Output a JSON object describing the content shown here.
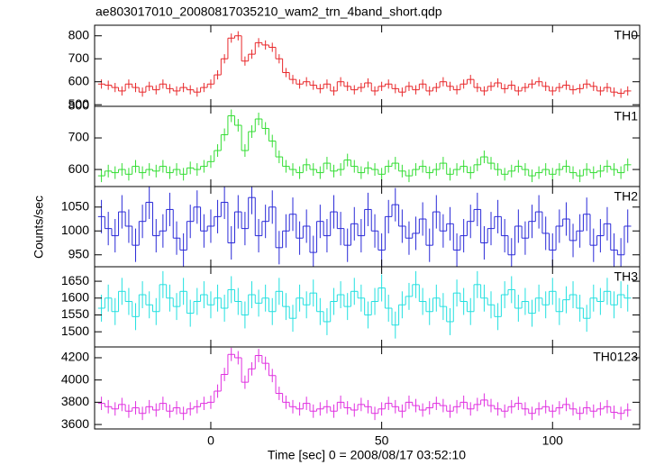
{
  "chart_data": {
    "type": "step",
    "title": "ae803017010_20080817035210_wam2_trn_4band_short.qdp",
    "xlabel": "Time [sec] 0 = 2008/08/17 03:52:10",
    "ylabel": "Counts/sec",
    "xlim": [
      -34,
      125.5
    ],
    "xticks": [
      0,
      50,
      100
    ],
    "x": [
      -32,
      -30,
      -28,
      -26,
      -24,
      -22,
      -20,
      -18,
      -16,
      -14,
      -12,
      -10,
      -8,
      -6,
      -4,
      -2,
      0,
      2,
      4,
      6,
      8,
      10,
      12,
      14,
      16,
      18,
      20,
      22,
      24,
      26,
      28,
      30,
      32,
      34,
      36,
      38,
      40,
      42,
      44,
      46,
      48,
      50,
      52,
      54,
      56,
      58,
      60,
      62,
      64,
      66,
      68,
      70,
      72,
      74,
      76,
      78,
      80,
      82,
      84,
      86,
      88,
      90,
      92,
      94,
      96,
      98,
      100,
      102,
      104,
      106,
      108,
      110,
      112,
      114,
      116,
      118,
      120,
      122
    ],
    "series": [
      {
        "name": "TH0",
        "color": "#e8272a",
        "ylim": [
          493,
          846
        ],
        "yticks": [
          500,
          600,
          700,
          800
        ],
        "error": 20,
        "values": [
          590,
          585,
          575,
          560,
          590,
          575,
          555,
          580,
          565,
          590,
          570,
          560,
          575,
          565,
          555,
          575,
          590,
          630,
          700,
          790,
          800,
          690,
          720,
          770,
          760,
          750,
          700,
          640,
          610,
          590,
          600,
          585,
          570,
          590,
          560,
          600,
          580,
          565,
          575,
          595,
          560,
          580,
          590,
          570,
          555,
          580,
          565,
          590,
          560,
          575,
          600,
          580,
          565,
          590,
          610,
          575,
          560,
          580,
          595,
          570,
          585,
          560,
          575,
          590,
          600,
          580,
          560,
          575,
          585,
          565,
          570,
          590,
          580,
          560,
          575,
          555,
          550,
          560
        ]
      },
      {
        "name": "TH1",
        "color": "#33dd33",
        "ylim": [
          546,
          800
        ],
        "yticks": [
          600,
          700,
          800
        ],
        "error": 20,
        "values": [
          580,
          595,
          590,
          600,
          585,
          610,
          590,
          600,
          595,
          610,
          590,
          600,
          585,
          605,
          600,
          610,
          625,
          660,
          710,
          770,
          740,
          660,
          720,
          760,
          730,
          690,
          640,
          610,
          600,
          590,
          615,
          600,
          590,
          620,
          595,
          600,
          630,
          610,
          590,
          605,
          600,
          585,
          610,
          620,
          595,
          580,
          600,
          610,
          590,
          600,
          620,
          585,
          600,
          610,
          590,
          615,
          640,
          620,
          600,
          585,
          595,
          610,
          600,
          580,
          590,
          600,
          585,
          600,
          610,
          590,
          580,
          600,
          590,
          595,
          610,
          600,
          590,
          615
        ]
      },
      {
        "name": "TH2",
        "color": "#2a2ad8",
        "ylim": [
          925,
          1093
        ],
        "yticks": [
          950,
          1000,
          1050
        ],
        "error": 35,
        "values": [
          1030,
          1005,
          990,
          1040,
          1010,
          970,
          1020,
          1060,
          990,
          1000,
          1045,
          985,
          960,
          1020,
          1050,
          1000,
          1010,
          1030,
          1060,
          975,
          1040,
          1005,
          1070,
          990,
          1020,
          1050,
          965,
          1000,
          1035,
          985,
          1010,
          955,
          1020,
          990,
          1040,
          1005,
          970,
          1015,
          990,
          1045,
          1000,
          960,
          1030,
          1055,
          1010,
          985,
          995,
          1025,
          970,
          1040,
          1000,
          1015,
          960,
          990,
          1020,
          1045,
          975,
          1005,
          1030,
          990,
          950,
          1010,
          985,
          1020,
          1040,
          995,
          960,
          1010,
          1025,
          980,
          1000,
          1035,
          970,
          990,
          1015,
          960,
          950,
          1010
        ]
      },
      {
        "name": "TH3",
        "color": "#22e0e0",
        "ylim": [
          1455,
          1693
        ],
        "yticks": [
          1500,
          1550,
          1600,
          1650
        ],
        "error": 40,
        "values": [
          1570,
          1600,
          1560,
          1620,
          1590,
          1545,
          1610,
          1580,
          1560,
          1640,
          1600,
          1575,
          1620,
          1555,
          1590,
          1610,
          1580,
          1600,
          1570,
          1625,
          1590,
          1550,
          1610,
          1585,
          1600,
          1560,
          1620,
          1575,
          1540,
          1600,
          1580,
          1615,
          1560,
          1530,
          1590,
          1610,
          1575,
          1620,
          1600,
          1550,
          1590,
          1630,
          1570,
          1520,
          1580,
          1605,
          1640,
          1590,
          1560,
          1600,
          1575,
          1530,
          1615,
          1590,
          1560,
          1640,
          1600,
          1580,
          1545,
          1610,
          1625,
          1570,
          1590,
          1555,
          1600,
          1580,
          1620,
          1560,
          1595,
          1610,
          1570,
          1540,
          1600,
          1590,
          1620,
          1580,
          1610,
          1600
        ]
      },
      {
        "name": "TH0123",
        "color": "#e030e0",
        "ylim": [
          3560,
          4297
        ],
        "yticks": [
          3600,
          3800,
          4000,
          4200
        ],
        "error": 60,
        "values": [
          3790,
          3760,
          3740,
          3780,
          3720,
          3750,
          3700,
          3760,
          3730,
          3790,
          3720,
          3750,
          3700,
          3740,
          3760,
          3790,
          3800,
          3900,
          4050,
          4230,
          4200,
          3980,
          4100,
          4220,
          4150,
          4040,
          3880,
          3800,
          3760,
          3740,
          3790,
          3720,
          3740,
          3760,
          3720,
          3800,
          3750,
          3730,
          3780,
          3760,
          3700,
          3740,
          3790,
          3760,
          3720,
          3800,
          3770,
          3730,
          3750,
          3790,
          3770,
          3720,
          3760,
          3800,
          3740,
          3780,
          3820,
          3770,
          3740,
          3720,
          3760,
          3790,
          3740,
          3700,
          3740,
          3760,
          3720,
          3750,
          3780,
          3740,
          3700,
          3750,
          3720,
          3740,
          3760,
          3710,
          3700,
          3730
        ]
      }
    ]
  }
}
